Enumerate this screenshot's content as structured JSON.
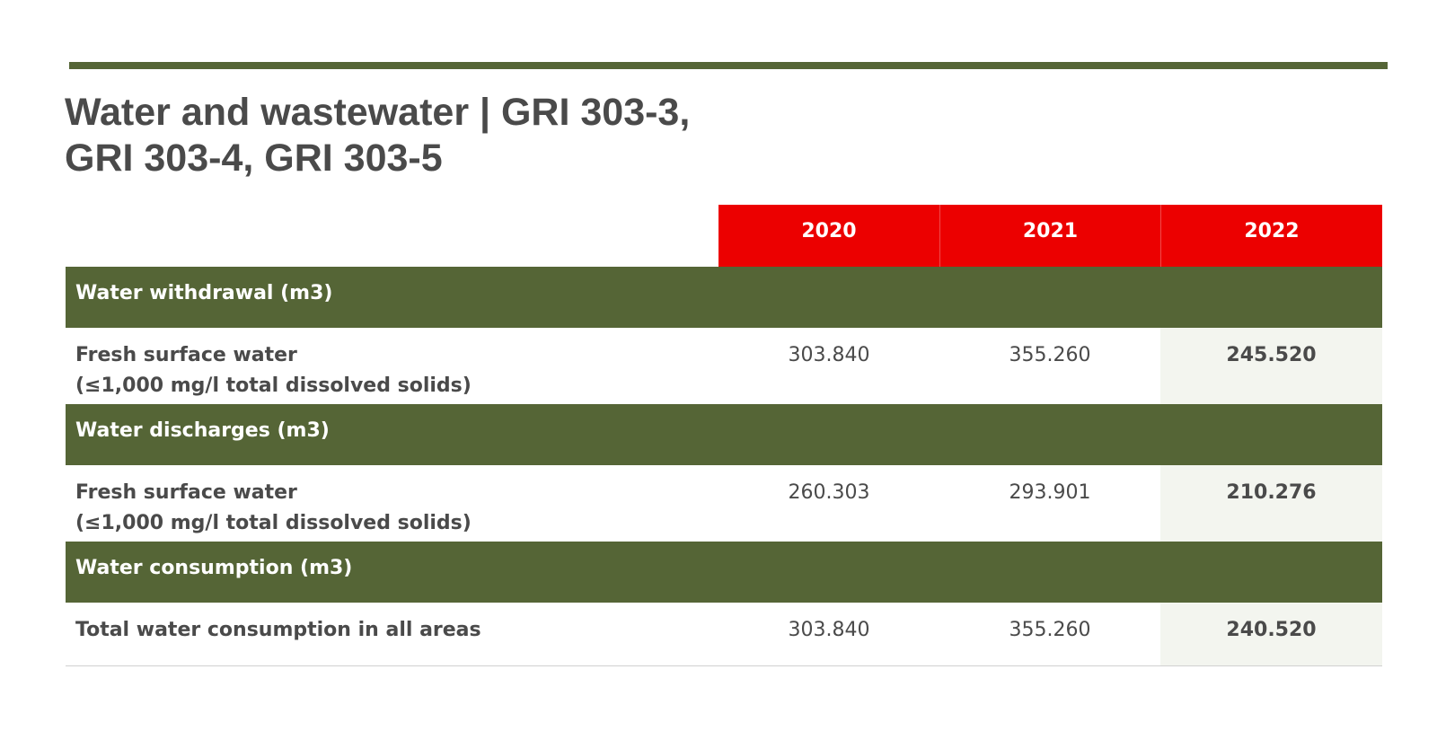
{
  "title": {
    "line1": "Water and wastewater | GRI 303-3,",
    "line2": "GRI 303-4, GRI 303-5"
  },
  "colors": {
    "header_red": "#ec0000",
    "section_green": "#556536",
    "highlight_bg": "#f3f5ef",
    "text": "#4a4a4a"
  },
  "table": {
    "years": [
      "2020",
      "2021",
      "2022"
    ],
    "sections": [
      {
        "title": "Water withdrawal (m3)",
        "row": {
          "label_line1": "Fresh surface water",
          "label_line2": "(≤1,000 mg/l total dissolved solids)",
          "values": [
            "303.840",
            "355.260",
            "245.520"
          ]
        }
      },
      {
        "title": "Water discharges (m3)",
        "row": {
          "label_line1": "Fresh surface water",
          "label_line2": "(≤1,000 mg/l total dissolved solids)",
          "values": [
            "260.303",
            "293.901",
            "210.276"
          ]
        }
      },
      {
        "title": "Water consumption (m3)",
        "row": {
          "label_line1": "Total water consumption in all areas",
          "values": [
            "303.840",
            "355.260",
            "240.520"
          ]
        }
      }
    ]
  }
}
